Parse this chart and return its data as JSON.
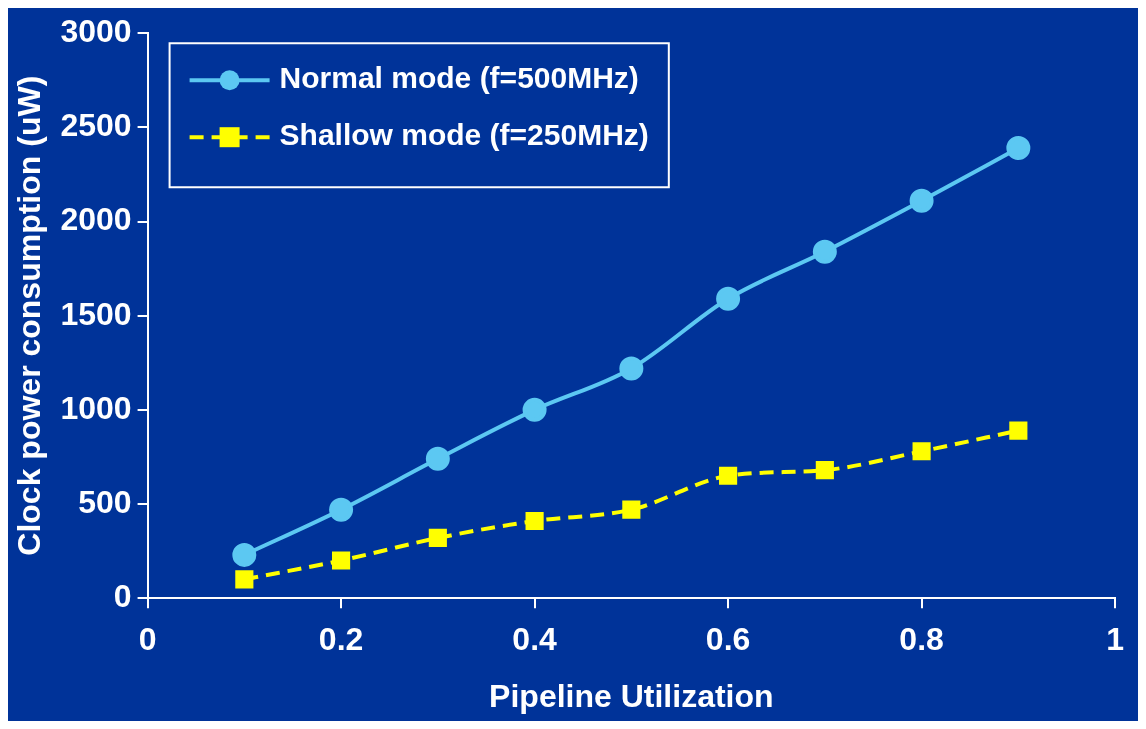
{
  "chart_data": {
    "type": "line",
    "xlabel": "Pipeline Utilization",
    "ylabel": "Clock power consumption (uW)",
    "x": [
      0.1,
      0.2,
      0.3,
      0.4,
      0.5,
      0.6,
      0.7,
      0.8,
      0.9
    ],
    "series": [
      {
        "name": "Normal mode (f=500MHz)",
        "color": "#5cc8f2",
        "marker": "circle",
        "line_style": "solid",
        "values": [
          230,
          470,
          740,
          1000,
          1220,
          1590,
          1840,
          2110,
          2390
        ]
      },
      {
        "name": "Shallow mode (f=250MHz)",
        "color": "#ffff00",
        "marker": "square",
        "line_style": "dashed",
        "values": [
          100,
          200,
          320,
          410,
          470,
          650,
          680,
          780,
          890
        ]
      }
    ],
    "xlim": [
      0,
      1
    ],
    "xticks": [
      0,
      0.2,
      0.4,
      0.6,
      0.8,
      1
    ],
    "ylim": [
      0,
      3000
    ],
    "yticks": [
      0,
      500,
      1000,
      1500,
      2000,
      2500,
      3000
    ],
    "grid": false,
    "legend": "top left"
  }
}
